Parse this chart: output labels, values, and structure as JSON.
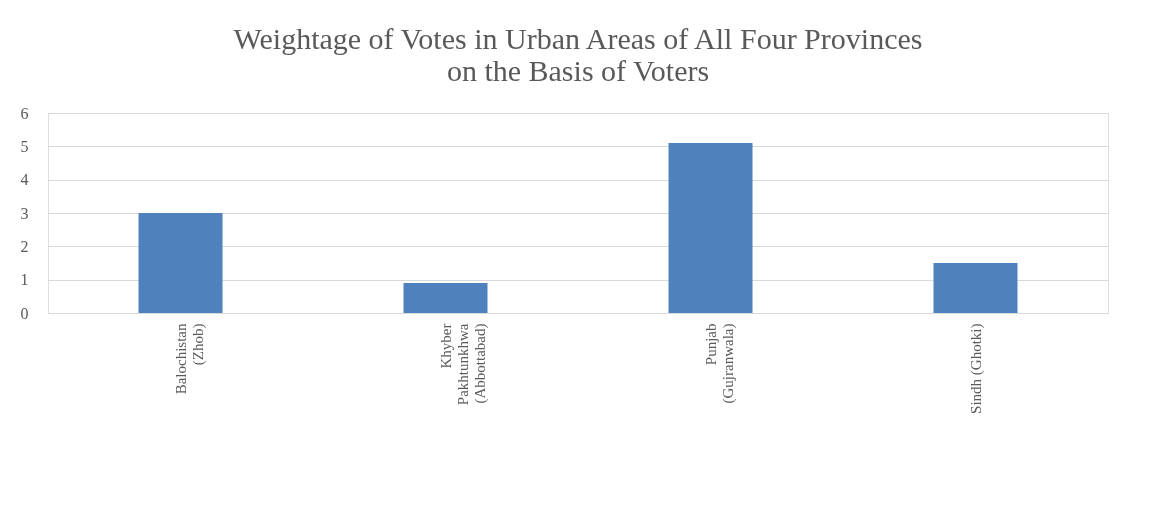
{
  "chart_data": {
    "type": "bar",
    "title": "Weightage of Votes in Urban Areas of All Four Provinces\non the Basis of Voters",
    "categories": [
      "Balochistan (Zhob)",
      "Khyber Pakhtunkhwa (Abbottabad)",
      "Punjab (Gujranwala)",
      "Sindh (Ghotki)"
    ],
    "values": [
      3.0,
      0.9,
      5.1,
      1.5
    ],
    "color": "#4f81bd",
    "ylim": [
      0,
      6
    ],
    "yticks": [
      0,
      1,
      2,
      3,
      4,
      5,
      6
    ],
    "grid": "y",
    "legend": false
  }
}
